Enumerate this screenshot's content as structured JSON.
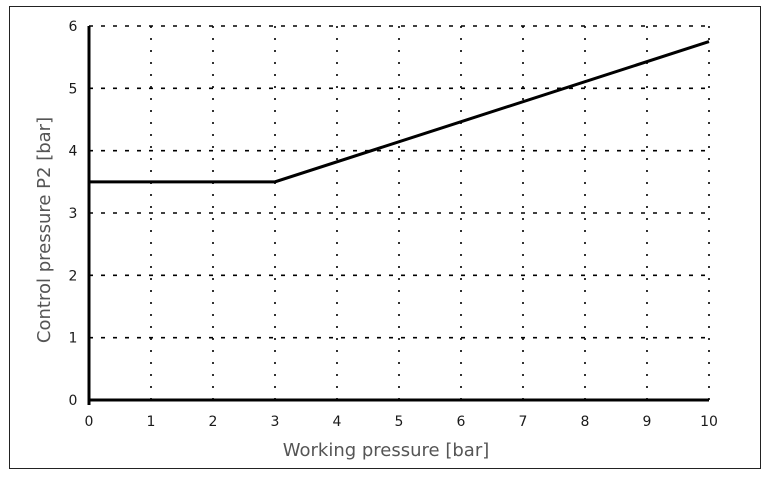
{
  "chart_data": {
    "type": "line",
    "title": "",
    "xlabel": "Working pressure [bar]",
    "ylabel": "Control pressure P2 [bar]",
    "xlim": [
      0,
      10
    ],
    "ylim": [
      0,
      6
    ],
    "xticks": [
      0,
      1,
      2,
      3,
      4,
      5,
      6,
      7,
      8,
      9,
      10
    ],
    "yticks": [
      0,
      1,
      2,
      3,
      4,
      5,
      6
    ],
    "grid": true,
    "grid_style": "dotted",
    "legend": null,
    "series": [
      {
        "name": "Control pressure P2",
        "x": [
          0,
          3,
          10
        ],
        "y": [
          3.5,
          3.5,
          5.75
        ],
        "color": "#000000"
      }
    ]
  },
  "axes": {
    "x_title": "Working pressure [bar]",
    "y_title": "Control pressure P2 [bar]"
  },
  "colors": {
    "line": "#000000",
    "grid": "#000000",
    "axis_title": "#555555",
    "frame": "#222222"
  }
}
